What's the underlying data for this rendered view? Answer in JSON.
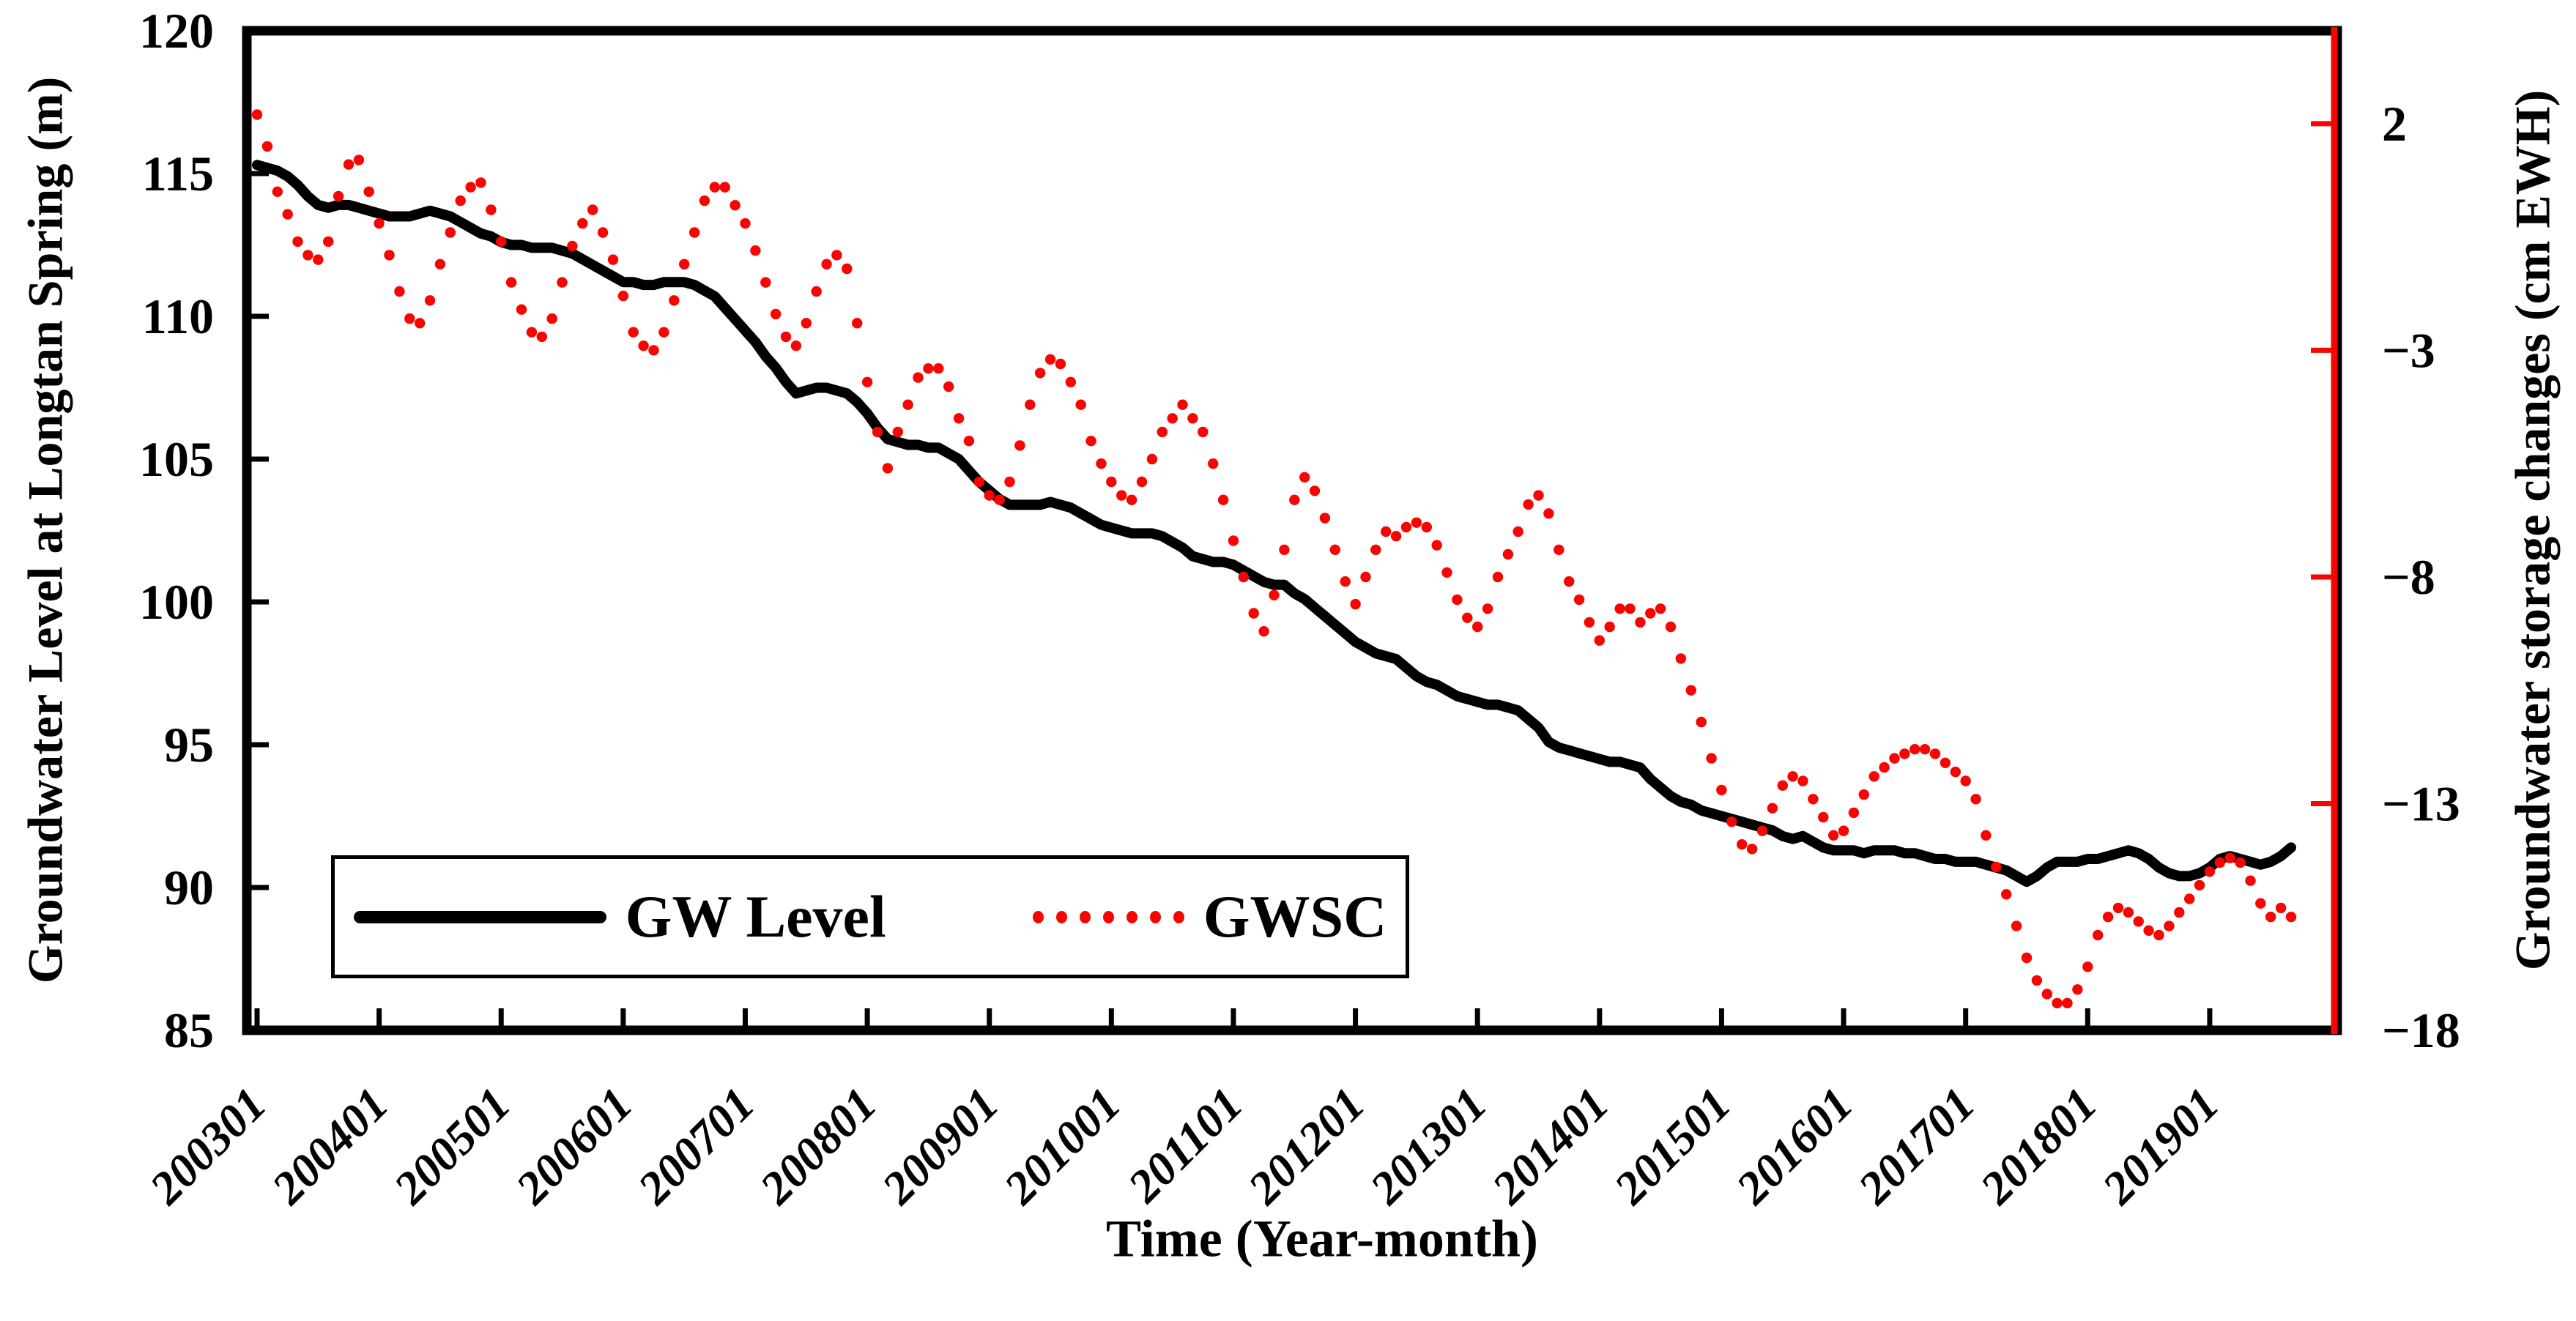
{
  "figure": {
    "background_color": "#ffffff",
    "frame_color": "#000000"
  },
  "chart_data": {
    "type": "line",
    "title": "",
    "xlabel": "Time (Year-month)",
    "ylabel_left": "Groundwater Level at Longtan Spring (m)",
    "ylabel_right": "Groundwater storage changes (cm EWH)",
    "x_start": "2003-01",
    "x_step": "1 month",
    "x_tick_labels": [
      "200301",
      "200401",
      "200501",
      "200601",
      "200701",
      "200801",
      "200901",
      "201001",
      "201101",
      "201201",
      "201301",
      "201401",
      "201501",
      "201601",
      "201701",
      "201801",
      "201901"
    ],
    "left_axis": {
      "min": 85,
      "max": 120,
      "tick_values": [
        120,
        115,
        110,
        105,
        100,
        95,
        90,
        85
      ],
      "tick_labels": [
        "120",
        "115",
        "110",
        "105",
        "100",
        "95",
        "90",
        "85"
      ],
      "color": "#000000"
    },
    "right_axis": {
      "min": -18,
      "max": 4.05,
      "tick_values": [
        2,
        -3,
        -8,
        -13,
        -18
      ],
      "tick_labels": [
        "2",
        "−3",
        "−8",
        "−13",
        "−18"
      ],
      "spine_color": "#f90400",
      "label_color": "#000000"
    },
    "legend": {
      "position": "inside bottom-left",
      "entries": [
        "GW Level",
        "GWSC"
      ]
    },
    "series": [
      {
        "name": "GW Level",
        "axis": "left",
        "style": "solid-line",
        "color": "#000000",
        "values": [
          115.3,
          115.2,
          115.1,
          114.9,
          114.6,
          114.2,
          113.9,
          113.8,
          113.9,
          113.9,
          113.8,
          113.7,
          113.6,
          113.5,
          113.5,
          113.5,
          113.6,
          113.7,
          113.6,
          113.5,
          113.3,
          113.1,
          112.9,
          112.8,
          112.6,
          112.5,
          112.5,
          112.4,
          112.4,
          112.4,
          112.3,
          112.2,
          112.0,
          111.8,
          111.6,
          111.4,
          111.2,
          111.2,
          111.1,
          111.1,
          111.2,
          111.2,
          111.2,
          111.1,
          110.9,
          110.7,
          110.3,
          109.9,
          109.5,
          109.1,
          108.6,
          108.2,
          107.7,
          107.3,
          107.4,
          107.5,
          107.5,
          107.4,
          107.3,
          107.0,
          106.6,
          106.1,
          105.7,
          105.6,
          105.5,
          105.5,
          105.4,
          105.4,
          105.2,
          105.0,
          104.6,
          104.2,
          103.9,
          103.6,
          103.4,
          103.4,
          103.4,
          103.4,
          103.5,
          103.4,
          103.3,
          103.1,
          102.9,
          102.7,
          102.6,
          102.5,
          102.4,
          102.4,
          102.4,
          102.3,
          102.1,
          101.9,
          101.6,
          101.5,
          101.4,
          101.4,
          101.3,
          101.1,
          100.9,
          100.7,
          100.6,
          100.6,
          100.3,
          100.1,
          99.8,
          99.5,
          99.2,
          98.9,
          98.6,
          98.4,
          98.2,
          98.1,
          98.0,
          97.7,
          97.4,
          97.2,
          97.1,
          96.9,
          96.7,
          96.6,
          96.5,
          96.4,
          96.4,
          96.3,
          96.2,
          95.9,
          95.6,
          95.1,
          94.9,
          94.8,
          94.7,
          94.6,
          94.5,
          94.4,
          94.4,
          94.3,
          94.2,
          93.8,
          93.5,
          93.2,
          93.0,
          92.9,
          92.7,
          92.6,
          92.5,
          92.4,
          92.3,
          92.2,
          92.1,
          92.0,
          91.8,
          91.7,
          91.8,
          91.6,
          91.4,
          91.3,
          91.3,
          91.3,
          91.2,
          91.3,
          91.3,
          91.3,
          91.2,
          91.2,
          91.1,
          91.0,
          91.0,
          90.9,
          90.9,
          90.9,
          90.8,
          90.7,
          90.6,
          90.4,
          90.2,
          90.4,
          90.7,
          90.9,
          90.9,
          90.9,
          91.0,
          91.0,
          91.1,
          91.2,
          91.3,
          91.2,
          91.0,
          90.7,
          90.5,
          90.4,
          90.4,
          90.5,
          90.7,
          91.0,
          91.1,
          91.0,
          90.9,
          90.8,
          90.9,
          91.1,
          91.4
        ]
      },
      {
        "name": "GWSC",
        "axis": "right",
        "style": "dotted",
        "color": "#f90400",
        "values": [
          2.2,
          1.5,
          0.5,
          0.0,
          -0.6,
          -0.9,
          -1.0,
          -0.6,
          0.4,
          1.1,
          1.2,
          0.5,
          -0.2,
          -0.9,
          -1.7,
          -2.3,
          -2.4,
          -1.9,
          -1.1,
          -0.4,
          0.3,
          0.6,
          0.7,
          0.1,
          -0.6,
          -1.5,
          -2.1,
          -2.6,
          -2.7,
          -2.3,
          -1.5,
          -0.7,
          -0.2,
          0.1,
          -0.4,
          -1.0,
          -1.8,
          -2.6,
          -2.9,
          -3.0,
          -2.6,
          -1.9,
          -1.1,
          -0.4,
          0.3,
          0.6,
          0.6,
          0.2,
          -0.2,
          -0.8,
          -1.5,
          -2.2,
          -2.7,
          -2.9,
          -2.4,
          -1.7,
          -1.1,
          -0.9,
          -1.2,
          -2.4,
          -3.7,
          -4.8,
          -5.6,
          -4.8,
          -4.2,
          -3.6,
          -3.4,
          -3.4,
          -3.8,
          -4.5,
          -5.0,
          -5.9,
          -6.2,
          -6.3,
          -5.9,
          -5.1,
          -4.2,
          -3.5,
          -3.2,
          -3.3,
          -3.7,
          -4.2,
          -5.0,
          -5.5,
          -5.9,
          -6.2,
          -6.3,
          -5.9,
          -5.4,
          -4.8,
          -4.5,
          -4.2,
          -4.5,
          -4.8,
          -5.5,
          -6.3,
          -7.2,
          -8.0,
          -8.8,
          -9.2,
          -8.4,
          -7.4,
          -6.3,
          -5.8,
          -6.1,
          -6.7,
          -7.4,
          -8.1,
          -8.6,
          -8.0,
          -7.4,
          -7.0,
          -7.1,
          -6.9,
          -6.8,
          -6.9,
          -7.3,
          -7.9,
          -8.5,
          -8.9,
          -9.1,
          -8.7,
          -8.0,
          -7.5,
          -7.0,
          -6.4,
          -6.2,
          -6.6,
          -7.4,
          -8.1,
          -8.5,
          -9.0,
          -9.4,
          -9.1,
          -8.7,
          -8.7,
          -9.0,
          -8.8,
          -8.7,
          -9.1,
          -9.8,
          -10.5,
          -11.2,
          -12.0,
          -12.7,
          -13.4,
          -13.9,
          -14.0,
          -13.6,
          -13.1,
          -12.6,
          -12.4,
          -12.5,
          -12.9,
          -13.3,
          -13.7,
          -13.6,
          -13.2,
          -12.8,
          -12.4,
          -12.2,
          -12.0,
          -11.9,
          -11.8,
          -11.8,
          -11.9,
          -12.1,
          -12.3,
          -12.5,
          -12.9,
          -13.7,
          -14.4,
          -15.0,
          -15.7,
          -16.4,
          -16.9,
          -17.2,
          -17.4,
          -17.4,
          -17.1,
          -16.6,
          -15.9,
          -15.5,
          -15.3,
          -15.4,
          -15.6,
          -15.8,
          -15.9,
          -15.7,
          -15.4,
          -15.1,
          -14.8,
          -14.5,
          -14.3,
          -14.2,
          -14.3,
          -14.7,
          -15.2,
          -15.5,
          -15.3,
          -15.5
        ]
      }
    ]
  }
}
